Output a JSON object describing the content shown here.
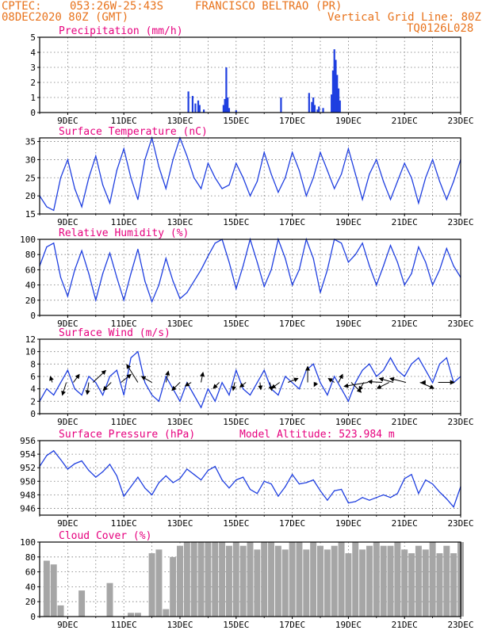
{
  "header": {
    "source": "CPTEC:",
    "coords": "053:26W-25:43S",
    "station": "FRANCISCO BELTRAO (PR)",
    "date": "08DEC2020 80Z (GMT)",
    "grid_note": "Vertical Grid Line: 80Z",
    "code": "TQ0126L028"
  },
  "colors": {
    "header": "#e8731c",
    "title": "#e6007e",
    "series": "#1f3fe0",
    "cloud": "#a6a6a6",
    "wind_arrow": "#000000"
  },
  "x_labels": [
    "9DEC",
    "11DEC",
    "13DEC",
    "15DEC",
    "17DEC",
    "19DEC",
    "21DEC",
    "23DEC"
  ],
  "chart_data": [
    {
      "type": "bar",
      "title": "Precipitation (mm/h)",
      "ylim": [
        0,
        5
      ],
      "yticks": [
        0,
        1,
        2,
        3,
        4,
        5
      ],
      "x_days": [
        13.3,
        13.45,
        13.55,
        13.65,
        13.7,
        13.85,
        14.55,
        14.6,
        14.65,
        14.7,
        14.75,
        15.0,
        16.6,
        17.6,
        17.7,
        17.75,
        17.8,
        17.9,
        17.95,
        18.1,
        18.4,
        18.45,
        18.5,
        18.55,
        18.6,
        18.65,
        18.7
      ],
      "values": [
        1.4,
        1.1,
        0.6,
        0.8,
        0.5,
        0.2,
        0.5,
        0.9,
        3.0,
        1.0,
        0.3,
        0.15,
        1.0,
        1.3,
        0.7,
        1.0,
        0.5,
        0.2,
        0.4,
        0.3,
        1.2,
        2.8,
        4.2,
        3.5,
        2.5,
        1.6,
        0.8
      ],
      "grid": true
    },
    {
      "type": "line",
      "title": "Surface Temperature (nC)",
      "ylim": [
        15,
        36
      ],
      "yticks": [
        15,
        20,
        25,
        30,
        35
      ],
      "x_days": [
        8.0,
        8.25,
        8.5,
        8.75,
        9.0,
        9.25,
        9.5,
        9.75,
        10.0,
        10.25,
        10.5,
        10.75,
        11.0,
        11.25,
        11.5,
        11.75,
        12.0,
        12.25,
        12.5,
        12.75,
        13.0,
        13.25,
        13.5,
        13.75,
        14.0,
        14.25,
        14.5,
        14.75,
        15.0,
        15.25,
        15.5,
        15.75,
        16.0,
        16.25,
        16.5,
        16.75,
        17.0,
        17.25,
        17.5,
        17.75,
        18.0,
        18.25,
        18.5,
        18.75,
        19.0,
        19.25,
        19.5,
        19.75,
        20.0,
        20.25,
        20.5,
        20.75,
        21.0,
        21.25,
        21.5,
        21.75,
        22.0,
        22.25,
        22.5,
        22.75,
        23.0
      ],
      "values": [
        20,
        17,
        16,
        25,
        30,
        22,
        17,
        25,
        31,
        23,
        18,
        27,
        33,
        25,
        19,
        30,
        36,
        28,
        22,
        30,
        36,
        31,
        25,
        22,
        29,
        25,
        22,
        23,
        29,
        25,
        20,
        24,
        32,
        26,
        21,
        25,
        32,
        27,
        20,
        25,
        32,
        27,
        22,
        26,
        33,
        26,
        19,
        26,
        30,
        24,
        19,
        24,
        29,
        25,
        18,
        25,
        30,
        24,
        19,
        24,
        30
      ],
      "grid": true
    },
    {
      "type": "line",
      "title": "Relative Humidity (%)",
      "ylim": [
        0,
        100
      ],
      "yticks": [
        0,
        20,
        40,
        60,
        80,
        100
      ],
      "x_days": [
        8.0,
        8.25,
        8.5,
        8.75,
        9.0,
        9.25,
        9.5,
        9.75,
        10.0,
        10.25,
        10.5,
        10.75,
        11.0,
        11.25,
        11.5,
        11.75,
        12.0,
        12.25,
        12.5,
        12.75,
        13.0,
        13.25,
        13.5,
        13.75,
        14.0,
        14.25,
        14.5,
        14.75,
        15.0,
        15.25,
        15.5,
        15.75,
        16.0,
        16.25,
        16.5,
        16.75,
        17.0,
        17.25,
        17.5,
        17.75,
        18.0,
        18.25,
        18.5,
        18.75,
        19.0,
        19.25,
        19.5,
        19.75,
        20.0,
        20.25,
        20.5,
        20.75,
        21.0,
        21.25,
        21.5,
        21.75,
        22.0,
        22.25,
        22.5,
        22.75,
        23.0
      ],
      "values": [
        65,
        90,
        95,
        50,
        25,
        60,
        85,
        55,
        20,
        55,
        82,
        50,
        20,
        55,
        87,
        45,
        18,
        40,
        75,
        45,
        22,
        30,
        45,
        60,
        78,
        95,
        100,
        70,
        35,
        65,
        100,
        70,
        38,
        60,
        100,
        75,
        40,
        60,
        100,
        75,
        30,
        60,
        100,
        95,
        70,
        80,
        95,
        65,
        40,
        65,
        92,
        70,
        40,
        55,
        90,
        70,
        40,
        60,
        88,
        65,
        50
      ],
      "grid": true
    },
    {
      "type": "line",
      "title": "Surface Wind (m/s)",
      "ylim": [
        0,
        12
      ],
      "yticks": [
        0,
        2,
        4,
        6,
        8,
        10,
        12
      ],
      "x_days": [
        8.0,
        8.25,
        8.5,
        8.75,
        9.0,
        9.25,
        9.5,
        9.75,
        10.0,
        10.25,
        10.5,
        10.75,
        11.0,
        11.25,
        11.5,
        11.75,
        12.0,
        12.25,
        12.5,
        12.75,
        13.0,
        13.25,
        13.5,
        13.75,
        14.0,
        14.25,
        14.5,
        14.75,
        15.0,
        15.25,
        15.5,
        15.75,
        16.0,
        16.25,
        16.5,
        16.75,
        17.0,
        17.25,
        17.5,
        17.75,
        18.0,
        18.25,
        18.5,
        18.75,
        19.0,
        19.25,
        19.5,
        19.75,
        20.0,
        20.25,
        20.5,
        20.75,
        21.0,
        21.25,
        21.5,
        21.75,
        22.0,
        22.25,
        22.5,
        22.75,
        23.0
      ],
      "values": [
        2,
        4,
        3,
        5,
        7,
        4,
        3,
        6,
        5,
        3,
        6,
        7,
        3,
        9,
        10,
        5,
        3,
        2,
        6,
        4,
        2,
        5,
        3,
        1,
        4,
        2,
        5,
        3,
        7,
        4,
        3,
        5,
        7,
        4,
        3,
        6,
        5,
        4,
        7,
        8,
        5,
        3,
        6,
        4,
        2,
        5,
        7,
        8,
        6,
        7,
        9,
        7,
        6,
        8,
        9,
        7,
        5,
        8,
        9,
        5,
        6
      ],
      "arrows": [
        {
          "day": 8.45,
          "u": -0.5,
          "v": 1.5
        },
        {
          "day": 8.95,
          "u": -1.0,
          "v": -3.2
        },
        {
          "day": 9.2,
          "u": 1.5,
          "v": 2.0
        },
        {
          "day": 9.75,
          "u": -0.4,
          "v": -3.0
        },
        {
          "day": 9.9,
          "u": 3.2,
          "v": 3.0
        },
        {
          "day": 10.55,
          "u": -2.0,
          "v": -2.0
        },
        {
          "day": 10.9,
          "u": 2.5,
          "v": 2.0
        },
        {
          "day": 11.5,
          "u": -2.8,
          "v": 4.5
        },
        {
          "day": 12.0,
          "u": -2.6,
          "v": 1.5
        },
        {
          "day": 12.5,
          "u": 0.6,
          "v": 2.8
        },
        {
          "day": 13.0,
          "u": -2.0,
          "v": -2.0
        },
        {
          "day": 13.4,
          "u": -1.5,
          "v": -0.9
        },
        {
          "day": 13.75,
          "u": 0.5,
          "v": 2.5
        },
        {
          "day": 14.4,
          "u": -1.5,
          "v": -1.5
        },
        {
          "day": 14.95,
          "u": -0.4,
          "v": -2.0
        },
        {
          "day": 15.35,
          "u": -1.5,
          "v": -1.2
        },
        {
          "day": 15.85,
          "u": 0.2,
          "v": -1.8
        },
        {
          "day": 16.2,
          "u": 0.5,
          "v": -2.0
        },
        {
          "day": 16.55,
          "u": -2.0,
          "v": -1.5
        },
        {
          "day": 16.85,
          "u": 2.5,
          "v": 1.0
        },
        {
          "day": 17.55,
          "u": 0.0,
          "v": 4.0
        },
        {
          "day": 17.85,
          "u": -0.5,
          "v": -1.0
        },
        {
          "day": 18.5,
          "u": -1.5,
          "v": 1.0
        },
        {
          "day": 18.65,
          "u": 1.0,
          "v": 2.0
        },
        {
          "day": 19.1,
          "u": 2.5,
          "v": -2.5
        },
        {
          "day": 19.55,
          "u": -1.2,
          "v": -2.0
        },
        {
          "day": 19.7,
          "u": -6.0,
          "v": -1.0
        },
        {
          "day": 20.2,
          "u": -3.5,
          "v": 0.2
        },
        {
          "day": 20.45,
          "u": -3.0,
          "v": -1.5
        },
        {
          "day": 20.6,
          "u": -3.5,
          "v": 1.0
        },
        {
          "day": 21.05,
          "u": -4.0,
          "v": 1.0
        },
        {
          "day": 21.55,
          "u": 3.5,
          "v": -1.5
        },
        {
          "day": 21.75,
          "u": -1.0,
          "v": 0.0
        },
        {
          "day": 22.2,
          "u": 4.0,
          "v": 0.0
        }
      ],
      "grid": true
    },
    {
      "type": "line",
      "title": "Surface Pressure (hPa)",
      "annotation": "Model Altitude: 523.984 m",
      "ylim": [
        945,
        956
      ],
      "yticks": [
        946,
        948,
        950,
        952,
        954,
        956
      ],
      "x_days": [
        8.0,
        8.25,
        8.5,
        8.75,
        9.0,
        9.25,
        9.5,
        9.75,
        10.0,
        10.25,
        10.5,
        10.75,
        11.0,
        11.25,
        11.5,
        11.75,
        12.0,
        12.25,
        12.5,
        12.75,
        13.0,
        13.25,
        13.5,
        13.75,
        14.0,
        14.25,
        14.5,
        14.75,
        15.0,
        15.25,
        15.5,
        15.75,
        16.0,
        16.25,
        16.5,
        16.75,
        17.0,
        17.25,
        17.5,
        17.75,
        18.0,
        18.25,
        18.5,
        18.75,
        19.0,
        19.25,
        19.5,
        19.75,
        20.0,
        20.25,
        20.5,
        20.75,
        21.0,
        21.25,
        21.5,
        21.75,
        22.0,
        22.25,
        22.5,
        22.75,
        23.0
      ],
      "values": [
        952.2,
        953.8,
        954.5,
        953.2,
        951.8,
        952.6,
        953.0,
        951.6,
        950.6,
        951.4,
        952.5,
        950.8,
        947.8,
        949.2,
        950.6,
        949.0,
        948.0,
        949.8,
        950.8,
        949.8,
        950.4,
        951.8,
        951.0,
        950.2,
        951.6,
        952.2,
        950.2,
        949.0,
        950.2,
        950.6,
        948.8,
        948.2,
        950.0,
        949.6,
        947.8,
        949.2,
        951.0,
        949.6,
        949.8,
        950.2,
        948.6,
        947.2,
        948.6,
        948.8,
        946.8,
        947.0,
        947.6,
        947.2,
        947.6,
        948.0,
        947.6,
        948.2,
        950.4,
        951.0,
        948.2,
        950.2,
        949.6,
        948.4,
        947.4,
        946.2,
        949.2
      ],
      "grid": true
    },
    {
      "type": "bar",
      "title": "Cloud Cover (%)",
      "ylim": [
        0,
        100
      ],
      "yticks": [
        0,
        20,
        40,
        60,
        80,
        100
      ],
      "x_days": [
        8.0,
        8.25,
        8.5,
        8.75,
        9.0,
        9.25,
        9.5,
        9.75,
        10.0,
        10.25,
        10.5,
        10.75,
        11.0,
        11.25,
        11.5,
        11.75,
        12.0,
        12.25,
        12.5,
        12.75,
        13.0,
        13.25,
        13.5,
        13.75,
        14.0,
        14.25,
        14.5,
        14.75,
        15.0,
        15.25,
        15.5,
        15.75,
        16.0,
        16.25,
        16.5,
        16.75,
        17.0,
        17.25,
        17.5,
        17.75,
        18.0,
        18.25,
        18.5,
        18.75,
        19.0,
        19.25,
        19.5,
        19.75,
        20.0,
        20.25,
        20.5,
        20.75,
        21.0,
        21.25,
        21.5,
        21.75,
        22.0,
        22.25,
        22.5,
        22.75,
        23.0
      ],
      "values": [
        0,
        75,
        70,
        15,
        0,
        0,
        35,
        0,
        0,
        0,
        45,
        0,
        0,
        5,
        5,
        0,
        85,
        90,
        10,
        80,
        95,
        100,
        100,
        100,
        100,
        100,
        100,
        95,
        100,
        95,
        100,
        90,
        100,
        100,
        95,
        90,
        100,
        100,
        90,
        100,
        95,
        90,
        95,
        100,
        85,
        100,
        90,
        95,
        100,
        95,
        95,
        100,
        90,
        85,
        95,
        90,
        100,
        85,
        95,
        85,
        100
      ],
      "grid": true
    }
  ]
}
